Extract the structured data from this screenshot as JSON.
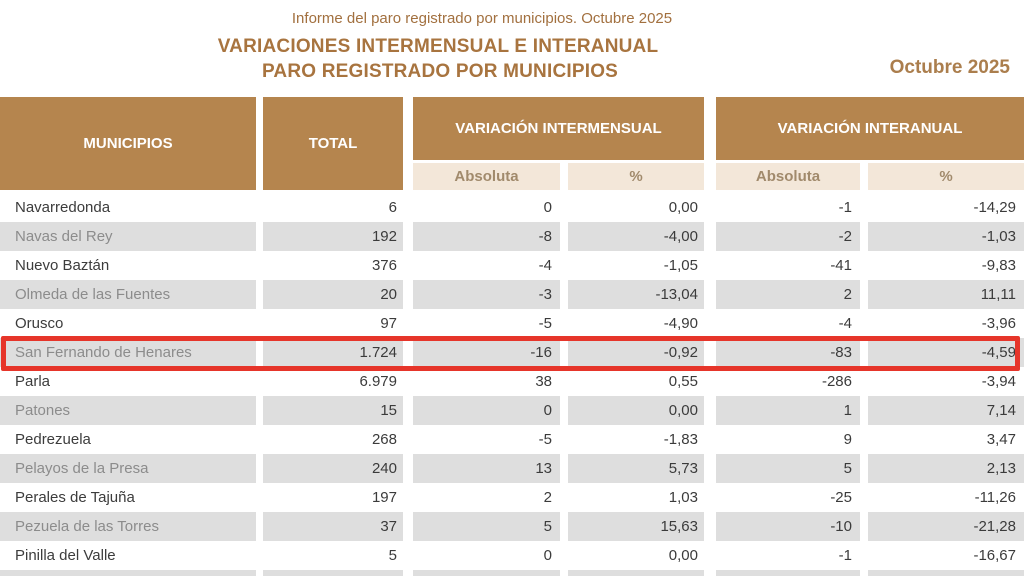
{
  "page": {
    "subtitle": "Informe del paro registrado por municipios. Octubre 2025",
    "title_line1": "VARIACIONES INTERMENSUAL E INTERANUAL",
    "title_line2": "PARO REGISTRADO POR MUNICIPIOS",
    "period": "Octubre 2025"
  },
  "table": {
    "headers": {
      "municipios": "MUNICIPIOS",
      "total": "TOTAL",
      "intermensual": "VARIACIÓN INTERMENSUAL",
      "interanual": "VARIACIÓN INTERANUAL",
      "absoluta": "Absoluta",
      "pct": "%"
    },
    "highlighted_row": "San Fernando de Henares",
    "rows": [
      {
        "name": "Navarredonda",
        "total": "6",
        "vi_abs": "0",
        "vi_pct": "0,00",
        "va_abs": "-1",
        "va_pct": "-14,29"
      },
      {
        "name": "Navas del Rey",
        "total": "192",
        "vi_abs": "-8",
        "vi_pct": "-4,00",
        "va_abs": "-2",
        "va_pct": "-1,03"
      },
      {
        "name": "Nuevo Baztán",
        "total": "376",
        "vi_abs": "-4",
        "vi_pct": "-1,05",
        "va_abs": "-41",
        "va_pct": "-9,83"
      },
      {
        "name": "Olmeda de las Fuentes",
        "total": "20",
        "vi_abs": "-3",
        "vi_pct": "-13,04",
        "va_abs": "2",
        "va_pct": "11,11"
      },
      {
        "name": "Orusco",
        "total": "97",
        "vi_abs": "-5",
        "vi_pct": "-4,90",
        "va_abs": "-4",
        "va_pct": "-3,96"
      },
      {
        "name": "San Fernando de Henares",
        "total": "1.724",
        "vi_abs": "-16",
        "vi_pct": "-0,92",
        "va_abs": "-83",
        "va_pct": "-4,59",
        "highlighted": true
      },
      {
        "name": "Parla",
        "total": "6.979",
        "vi_abs": "38",
        "vi_pct": "0,55",
        "va_abs": "-286",
        "va_pct": "-3,94"
      },
      {
        "name": "Patones",
        "total": "15",
        "vi_abs": "0",
        "vi_pct": "0,00",
        "va_abs": "1",
        "va_pct": "7,14"
      },
      {
        "name": "Pedrezuela",
        "total": "268",
        "vi_abs": "-5",
        "vi_pct": "-1,83",
        "va_abs": "9",
        "va_pct": "3,47"
      },
      {
        "name": "Pelayos de la Presa",
        "total": "240",
        "vi_abs": "13",
        "vi_pct": "5,73",
        "va_abs": "5",
        "va_pct": "2,13"
      },
      {
        "name": "Perales de Tajuña",
        "total": "197",
        "vi_abs": "2",
        "vi_pct": "1,03",
        "va_abs": "-25",
        "va_pct": "-11,26"
      },
      {
        "name": "Pezuela de las Torres",
        "total": "37",
        "vi_abs": "5",
        "vi_pct": "15,63",
        "va_abs": "-10",
        "va_pct": "-21,28"
      },
      {
        "name": "Pinilla del Valle",
        "total": "5",
        "vi_abs": "0",
        "vi_pct": "0,00",
        "va_abs": "-1",
        "va_pct": "-16,67"
      }
    ]
  },
  "colors": {
    "header_brown": "#b5854e",
    "subheader_beige": "#f3e7d9",
    "subheader_text": "#a18a6c",
    "title_brown": "#a8743f",
    "row_alt_gray": "#dedede",
    "highlight_red": "#e6352a",
    "text_dark": "#3b3b3b",
    "text_gray_row": "#8c8c8c"
  }
}
